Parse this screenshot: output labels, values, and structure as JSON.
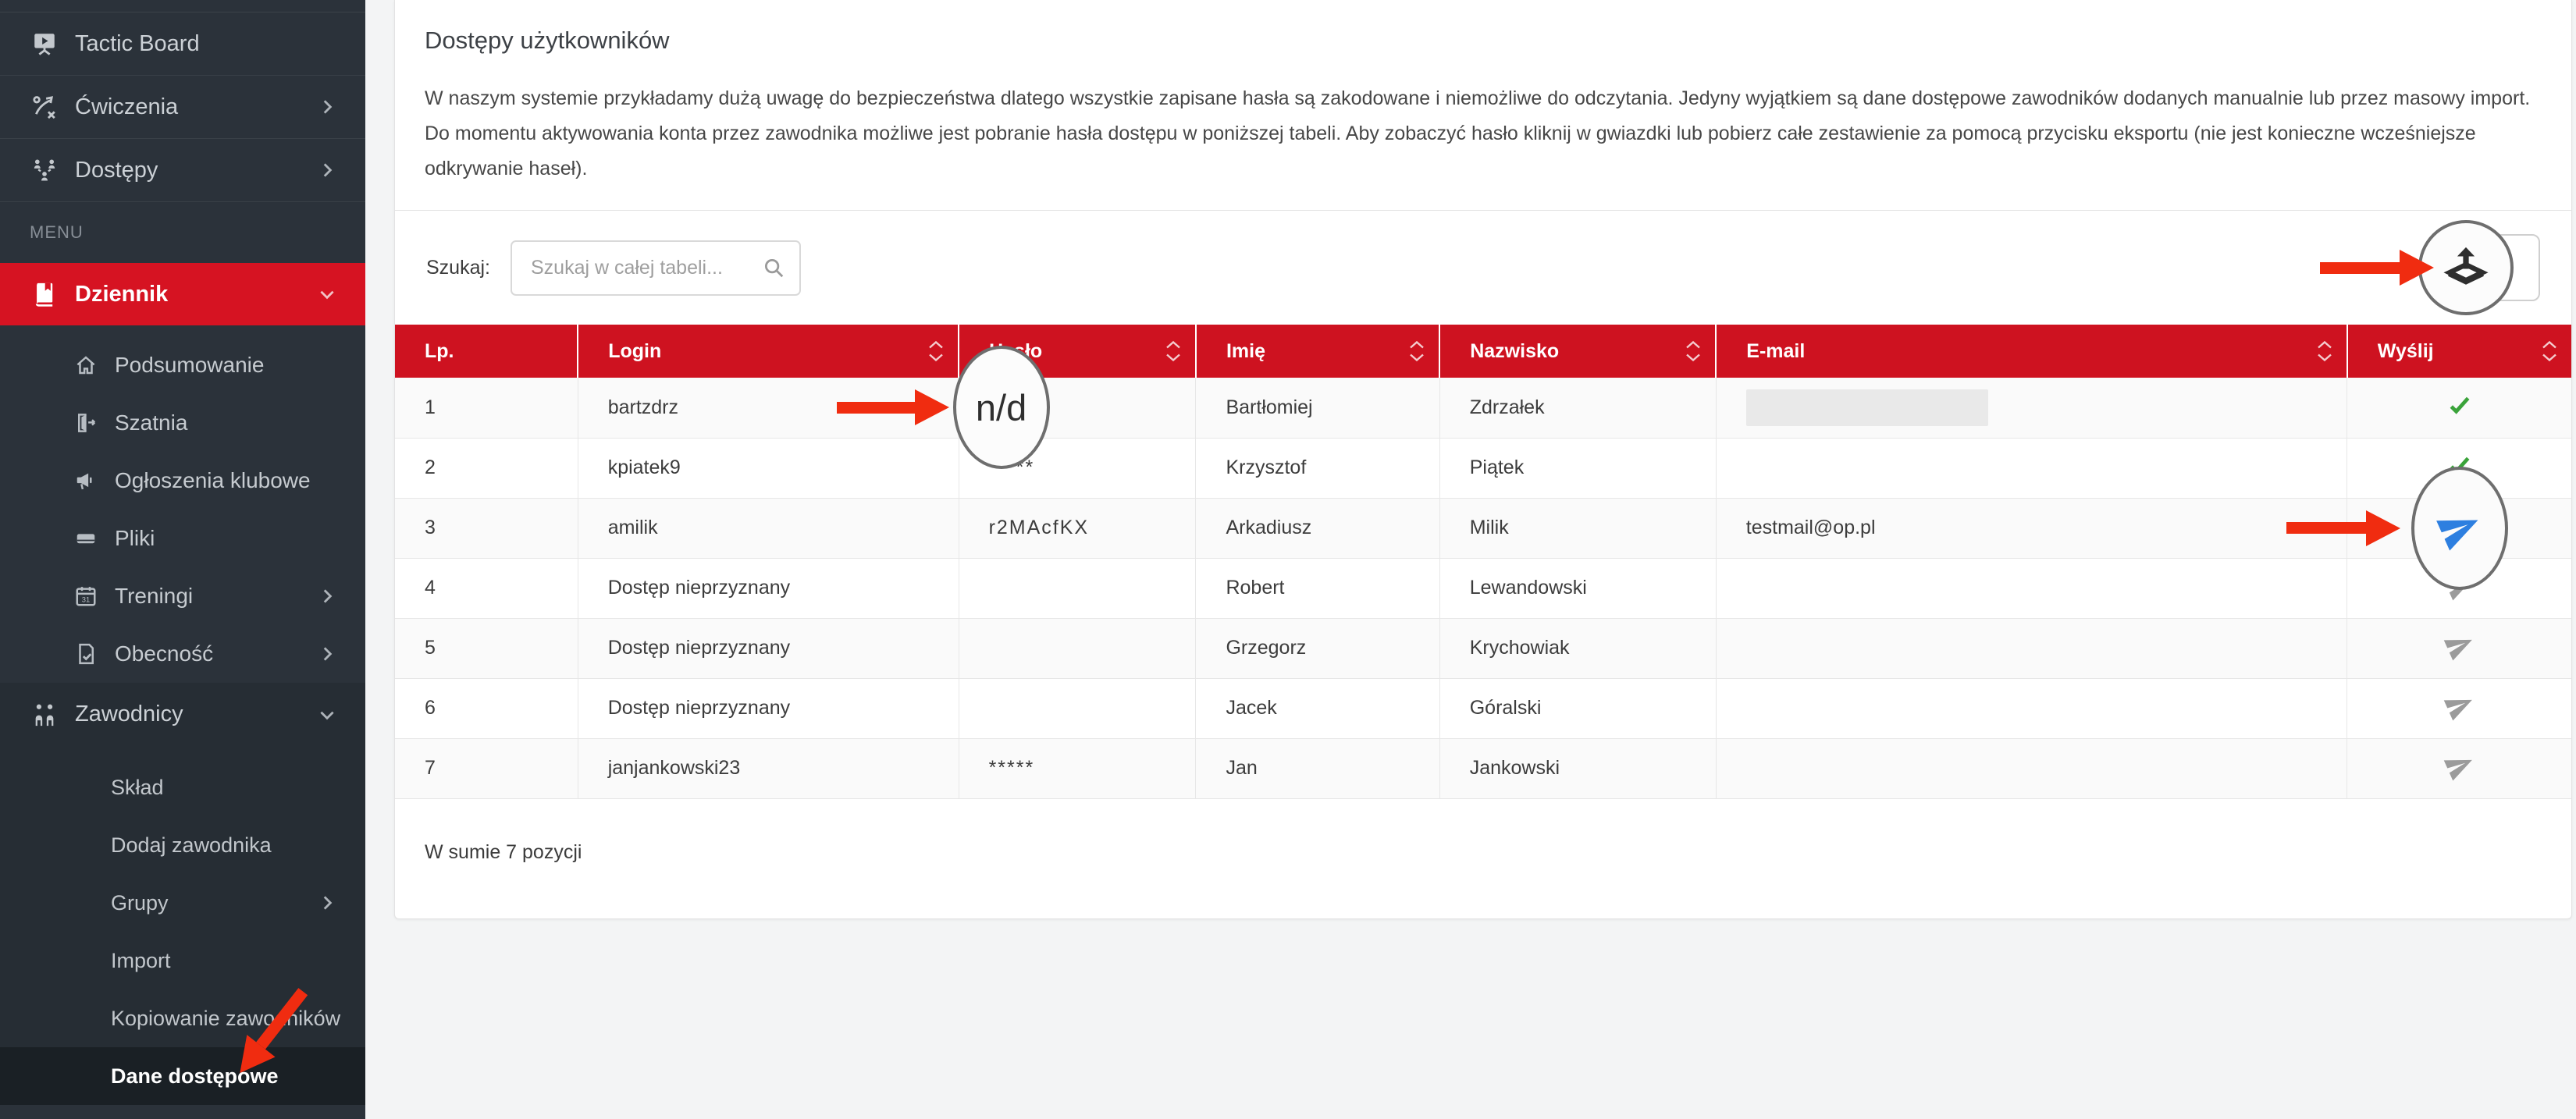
{
  "colors": {
    "red": "#ce1220",
    "sidebar_red": "#d61322",
    "ann": "#f02c10",
    "green": "#3aa33a",
    "blue": "#2d7fe0"
  },
  "sidebar": {
    "top_items": [
      {
        "label": "Tactic Board",
        "icon": "presentation-icon"
      },
      {
        "label": "Ćwiczenia",
        "icon": "tactics-icon",
        "chevron": "right"
      },
      {
        "label": "Dostępy",
        "icon": "access-users-icon",
        "chevron": "right"
      }
    ],
    "menu_label": "MENU",
    "dziennik": {
      "label": "Dziennik",
      "icon": "book-icon",
      "chevron": "down"
    },
    "dziennik_items": [
      {
        "label": "Podsumowanie",
        "icon": "home-icon"
      },
      {
        "label": "Szatnia",
        "icon": "door-exit-icon"
      },
      {
        "label": "Ogłoszenia klubowe",
        "icon": "megaphone-icon"
      },
      {
        "label": "Pliki",
        "icon": "drive-icon"
      },
      {
        "label": "Treningi",
        "icon": "calendar-icon",
        "chevron": "right"
      },
      {
        "label": "Obecność",
        "icon": "attendance-icon",
        "chevron": "right"
      }
    ],
    "zawodnicy": {
      "label": "Zawodnicy",
      "icon": "players-icon",
      "chevron": "down"
    },
    "zawodnicy_items": [
      {
        "label": "Skład"
      },
      {
        "label": "Dodaj zawodnika"
      },
      {
        "label": "Grupy",
        "chevron": "right"
      },
      {
        "label": "Import"
      },
      {
        "label": "Kopiowanie zawodników"
      },
      {
        "label": "Dane dostępowe",
        "active": true
      }
    ]
  },
  "main": {
    "title": "Dostępy użytkowników",
    "intro": "W naszym systemie przykładamy dużą uwagę do bezpieczeństwa dlatego wszystkie zapisane hasła są zakodowane i niemożliwe do odczytania. Jedyny wyjątkiem są dane dostępowe zawodników dodanych manualnie lub przez masowy import. Do momentu aktywowania konta przez zawodnika możliwe jest pobranie hasła dostępu w poniższej tabeli. Aby zobaczyć hasło kliknij w gwiazdki lub pobierz całe zestawienie za pomocą przycisku eksportu (nie jest konieczne wcześniejsze odkrywanie haseł).",
    "search_label": "Szukaj:",
    "search_placeholder": "Szukaj w całej tabeli...",
    "summary": "W sumie 7 pozycji"
  },
  "table": {
    "columns": [
      {
        "label": "Lp.",
        "sortable": false
      },
      {
        "label": "Login",
        "sortable": true
      },
      {
        "label": "Hasło",
        "sortable": true
      },
      {
        "label": "Imię",
        "sortable": true
      },
      {
        "label": "Nazwisko",
        "sortable": true
      },
      {
        "label": "E-mail",
        "sortable": true
      },
      {
        "label": "Wyślij",
        "sortable": true
      }
    ],
    "rows": [
      {
        "lp": "1",
        "login": "bartzdrz",
        "haslo": "n/d",
        "haslo_callout": true,
        "imie": "Bartłomiej",
        "nazwisko": "Zdrzałek",
        "email": "",
        "email_hidden": true,
        "status": "sent"
      },
      {
        "lp": "2",
        "login": "kpiatek9",
        "haslo": "*****",
        "imie": "Krzysztof",
        "nazwisko": "Piątek",
        "email": "",
        "status": "sent"
      },
      {
        "lp": "3",
        "login": "amilik",
        "haslo": "r2MAcfKX",
        "imie": "Arkadiusz",
        "nazwisko": "Milik",
        "email": "testmail@op.pl",
        "status": "send-highlight"
      },
      {
        "lp": "4",
        "login": "Dostęp nieprzyznany",
        "haslo": "",
        "imie": "Robert",
        "nazwisko": "Lewandowski",
        "email": "",
        "status": "send"
      },
      {
        "lp": "5",
        "login": "Dostęp nieprzyznany",
        "haslo": "",
        "imie": "Grzegorz",
        "nazwisko": "Krychowiak",
        "email": "",
        "status": "send"
      },
      {
        "lp": "6",
        "login": "Dostęp nieprzyznany",
        "haslo": "",
        "imie": "Jacek",
        "nazwisko": "Góralski",
        "email": "",
        "status": "send"
      },
      {
        "lp": "7",
        "login": "janjankowski23",
        "haslo": "*****",
        "imie": "Jan",
        "nazwisko": "Jankowski",
        "email": "",
        "status": "send"
      }
    ]
  }
}
